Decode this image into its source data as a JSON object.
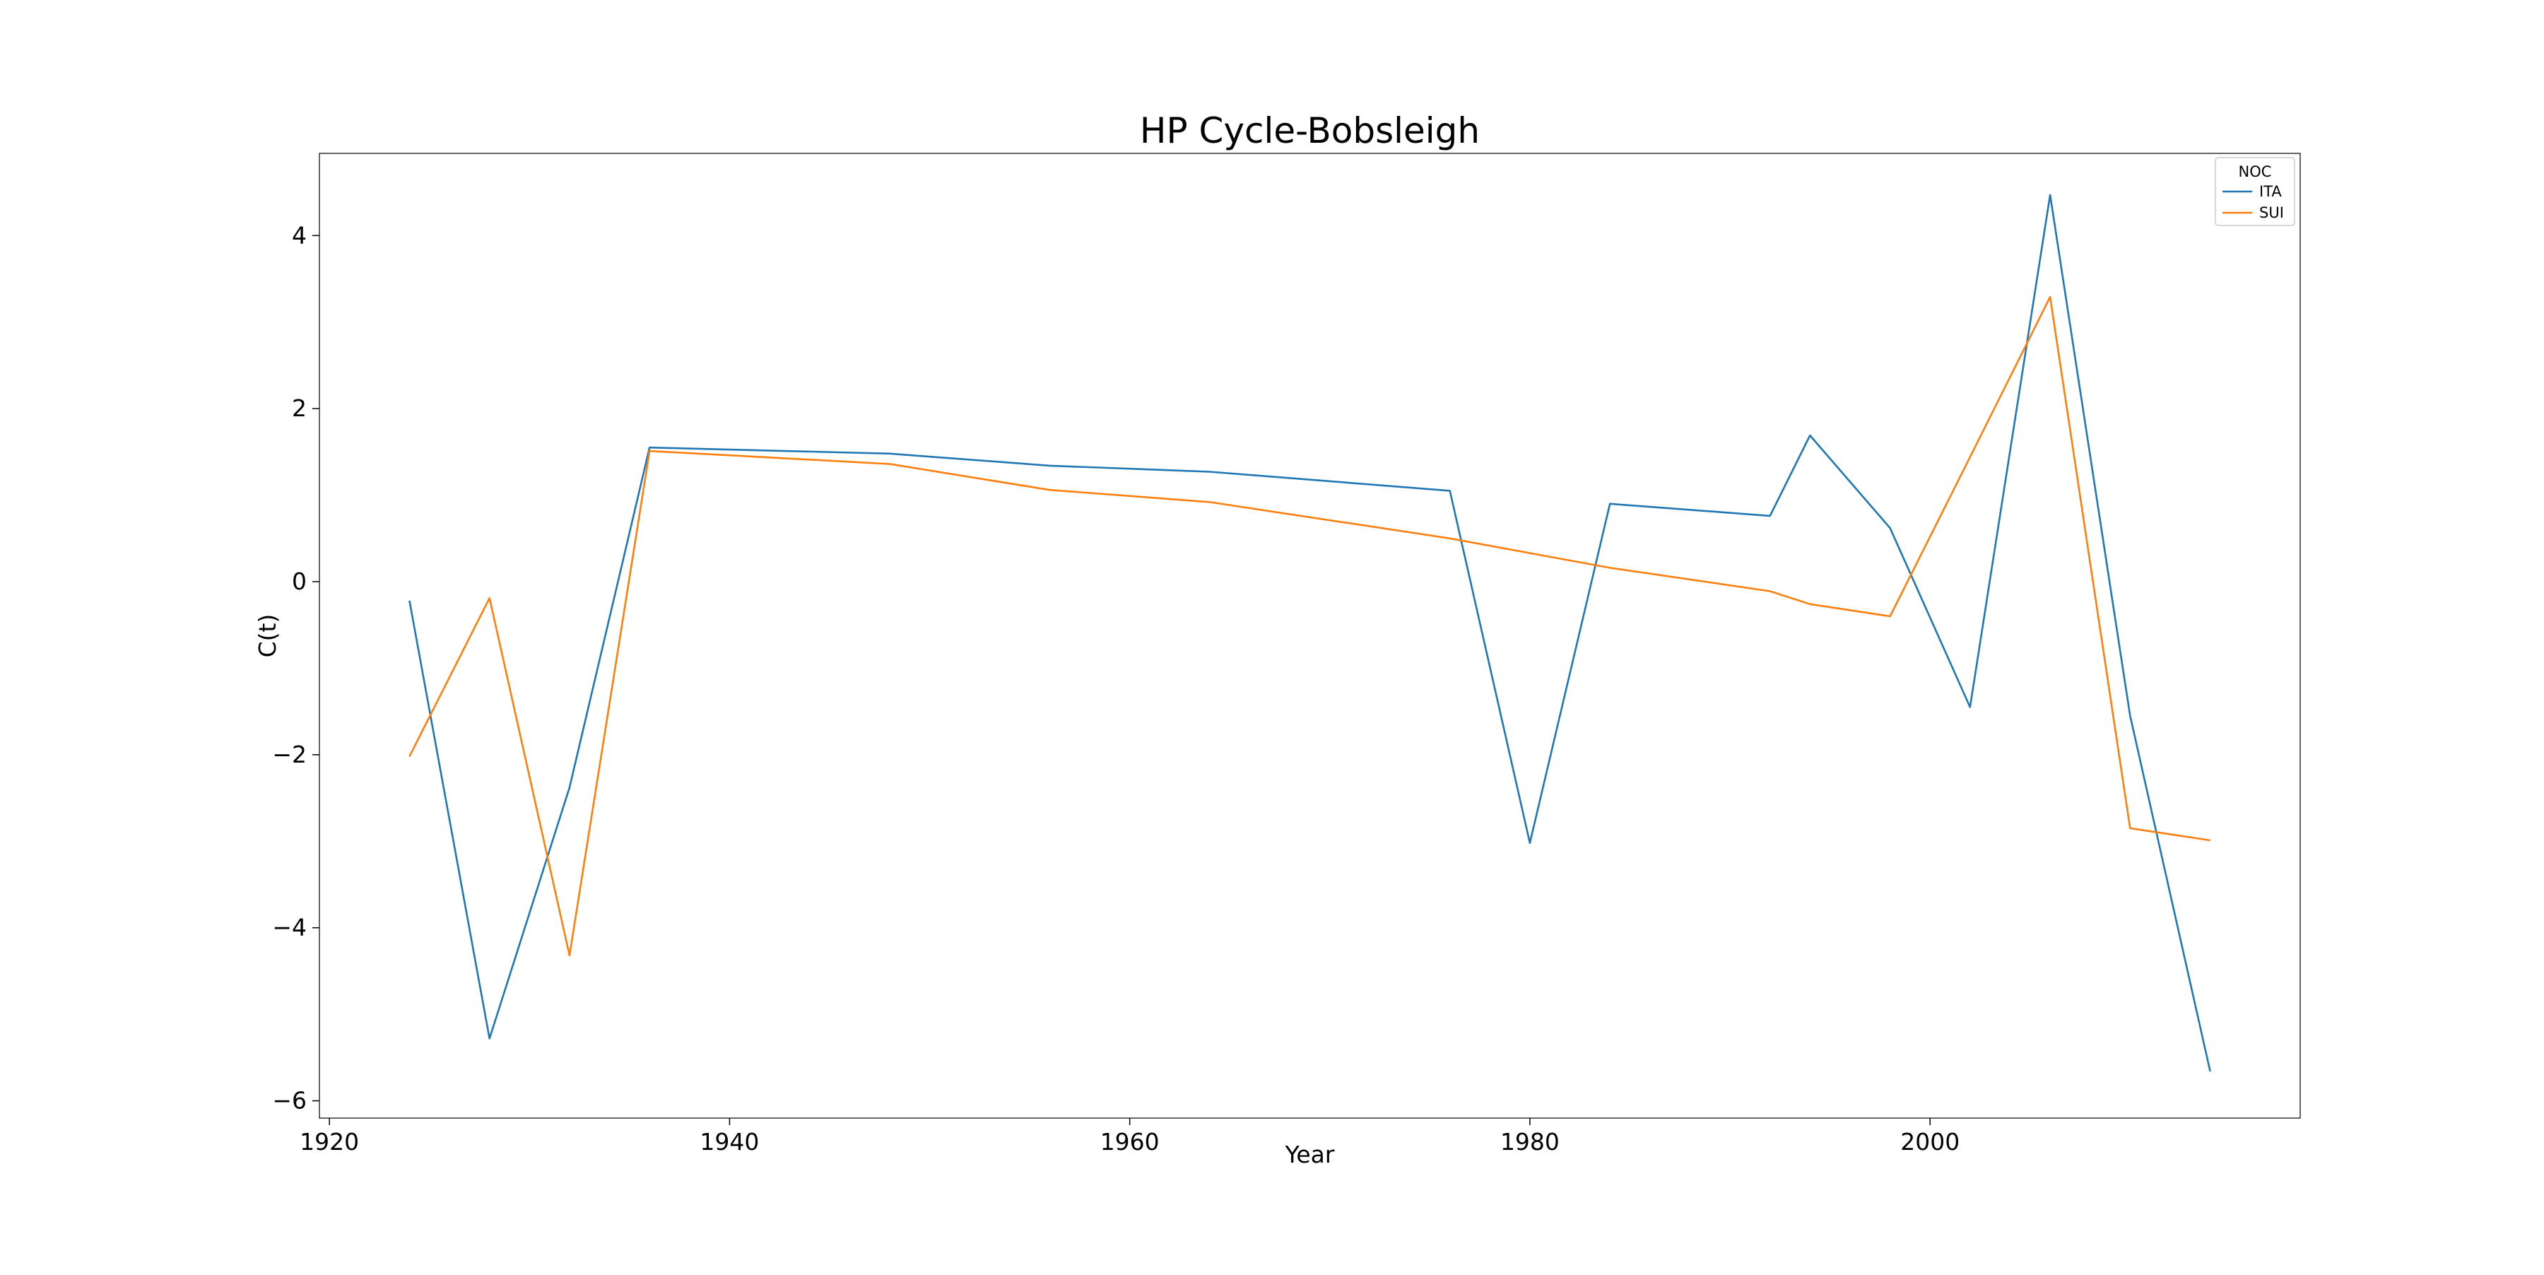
{
  "chart_data": {
    "type": "line",
    "title": "HP Cycle-Bobsleigh",
    "xlabel": "Year",
    "ylabel": "C(t)",
    "xlim": [
      1919.5,
      2018.5
    ],
    "ylim": [
      -6.2,
      4.95
    ],
    "xticks": [
      1920,
      1940,
      1960,
      1980,
      2000
    ],
    "xtick_labels": [
      "1920",
      "1940",
      "1960",
      "1980",
      "2000"
    ],
    "yticks": [
      4,
      2,
      0,
      -2,
      -4,
      -6
    ],
    "ytick_labels": [
      "4",
      "2",
      "0",
      "−2",
      "−4",
      "−6"
    ],
    "grid": false,
    "legend": {
      "title": "NOC",
      "position": "top-right"
    },
    "series": [
      {
        "name": "ITA",
        "color": "#1f77b4",
        "x": [
          1924,
          1928,
          1932,
          1936,
          1948,
          1956,
          1964,
          1976,
          1980,
          1984,
          1992,
          1994,
          1998,
          2002,
          2006,
          2010,
          2014
        ],
        "y": [
          -0.22,
          -5.28,
          -2.38,
          1.55,
          1.48,
          1.34,
          1.27,
          1.05,
          -3.02,
          0.9,
          0.76,
          1.69,
          0.62,
          -1.45,
          4.47,
          -1.55,
          -5.66
        ]
      },
      {
        "name": "SUI",
        "color": "#ff7f0e",
        "x": [
          1924,
          1928,
          1932,
          1936,
          1948,
          1956,
          1964,
          1976,
          1980,
          1984,
          1992,
          1994,
          1998,
          2002,
          2006,
          2010,
          2014
        ],
        "y": [
          -2.02,
          -0.19,
          -4.32,
          1.51,
          1.36,
          1.06,
          0.92,
          0.5,
          0.33,
          0.16,
          -0.11,
          -0.26,
          -0.4,
          1.44,
          3.29,
          -2.85,
          -2.99
        ]
      }
    ]
  }
}
